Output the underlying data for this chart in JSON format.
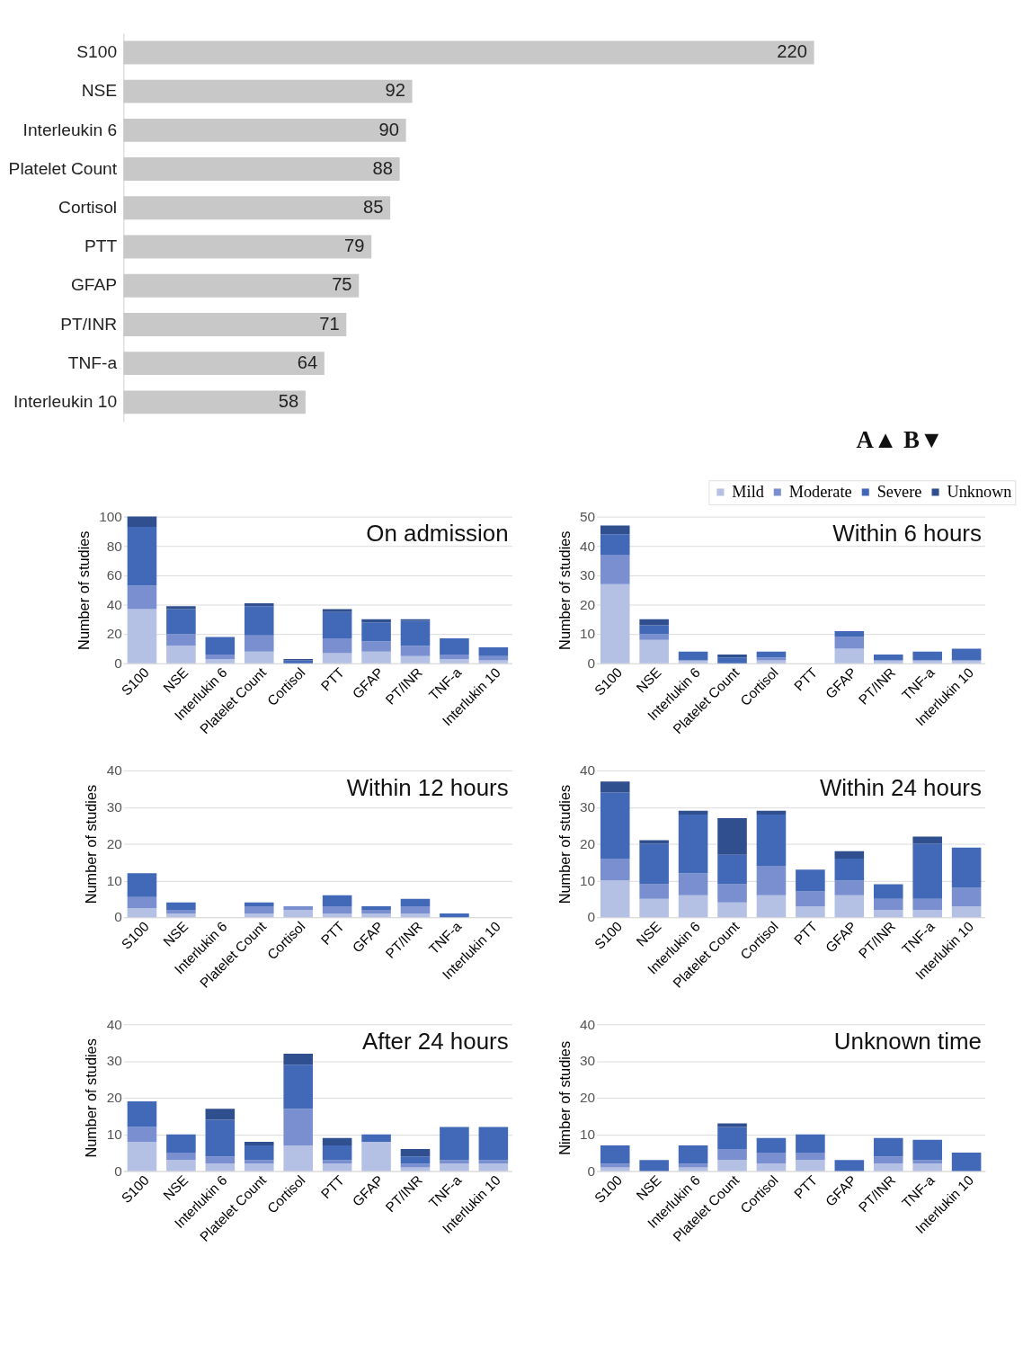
{
  "chart_data": [
    {
      "type": "bar",
      "orientation": "horizontal",
      "categories": [
        "S100",
        "NSE",
        "Interleukin 6",
        "Platelet Count",
        "Cortisol",
        "PTT",
        "GFAP",
        "PT/INR",
        "TNF-a",
        "Interleukin 10"
      ],
      "values": [
        220,
        92,
        90,
        88,
        85,
        79,
        75,
        71,
        64,
        58
      ],
      "color": "#c8c8c8",
      "data_labels": true,
      "annotations": [
        "A▲  B▼"
      ]
    },
    {
      "type": "bar",
      "stacked": true,
      "title": "On admission",
      "ylabel": "Number of studies",
      "ylim": [
        0,
        100
      ],
      "yticks": [
        0,
        20,
        40,
        60,
        80,
        100
      ],
      "grid": "y",
      "categories": [
        "S100",
        "NSE",
        "Interlukin 6",
        "Platelet Count",
        "Cortisol",
        "PTT",
        "GFAP",
        "PT/INR",
        "TNF-a",
        "Interlukin 10"
      ],
      "series": [
        {
          "color": "#b4c0e4",
          "values": [
            37,
            12,
            3,
            8,
            0,
            7,
            8,
            5,
            3,
            2
          ]
        },
        {
          "color": "#7a8fd0",
          "values": [
            16,
            8,
            3,
            11,
            0,
            10,
            7,
            7,
            3,
            3
          ]
        },
        {
          "color": "#4169b8",
          "values": [
            40,
            17,
            12,
            20,
            2,
            18,
            13,
            17,
            11,
            6
          ]
        },
        {
          "color": "#2f4f8f",
          "values": [
            7,
            2,
            0,
            2,
            1,
            2,
            2,
            1,
            0,
            0
          ]
        }
      ]
    },
    {
      "type": "bar",
      "stacked": true,
      "title": "Within 6 hours",
      "ylabel": "Number of studies",
      "ylim": [
        0,
        50
      ],
      "yticks": [
        0,
        10,
        20,
        30,
        40,
        50
      ],
      "grid": "y",
      "legend": "top right",
      "categories": [
        "S100",
        "NSE",
        "Interlukin 6",
        "Platelet Count",
        "Cortisol",
        "PTT",
        "GFAP",
        "PT/INR",
        "TNF-a",
        "Interlukin 10"
      ],
      "series": [
        {
          "name": "Mild",
          "color": "#b4c0e4",
          "values": [
            27,
            8,
            1,
            0,
            1,
            0,
            5,
            1,
            1,
            1
          ]
        },
        {
          "name": "Moderate",
          "color": "#7a8fd0",
          "values": [
            10,
            2,
            0,
            0,
            1,
            0,
            4,
            0,
            0,
            0
          ]
        },
        {
          "name": "Severe",
          "color": "#4169b8",
          "values": [
            7,
            3,
            3,
            2,
            2,
            0,
            2,
            2,
            3,
            4
          ]
        },
        {
          "name": "Unknown",
          "color": "#2f4f8f",
          "values": [
            3,
            2,
            0,
            1,
            0,
            0,
            0,
            0,
            0,
            0
          ]
        }
      ]
    },
    {
      "type": "bar",
      "stacked": true,
      "title": "Within 12 hours",
      "ylabel": "Number of studies",
      "ylim": [
        0,
        40
      ],
      "yticks": [
        0,
        10,
        20,
        30,
        40
      ],
      "grid": "y",
      "categories": [
        "S100",
        "NSE",
        "Interlukin 6",
        "Platelet Count",
        "Cortisol",
        "PTT",
        "GFAP",
        "PT/INR",
        "TNF-a",
        "Interlukin 10"
      ],
      "series": [
        {
          "color": "#b4c0e4",
          "values": [
            2.5,
            1,
            0,
            1,
            2,
            1,
            1,
            1,
            0,
            0
          ]
        },
        {
          "color": "#7a8fd0",
          "values": [
            3,
            1,
            0,
            2,
            1,
            2,
            1,
            2,
            0,
            0
          ]
        },
        {
          "color": "#4169b8",
          "values": [
            6.5,
            2,
            0,
            1,
            0,
            3,
            1,
            2,
            1,
            0
          ]
        },
        {
          "color": "#2f4f8f",
          "values": [
            0,
            0,
            0,
            0,
            0,
            0,
            0,
            0,
            0,
            0
          ]
        }
      ]
    },
    {
      "type": "bar",
      "stacked": true,
      "title": "Within 24 hours",
      "ylabel": "Number of studies",
      "ylim": [
        0,
        40
      ],
      "yticks": [
        0,
        10,
        20,
        30,
        40
      ],
      "grid": "y",
      "categories": [
        "S100",
        "NSE",
        "Interlukin 6",
        "Platelet Count",
        "Cortisol",
        "PTT",
        "GFAP",
        "PT/INR",
        "TNF-a",
        "Interlukin 10"
      ],
      "series": [
        {
          "color": "#b4c0e4",
          "values": [
            10,
            5,
            6,
            4,
            6,
            3,
            6,
            2,
            2,
            3
          ]
        },
        {
          "color": "#7a8fd0",
          "values": [
            6,
            4,
            6,
            5,
            8,
            4,
            4,
            3,
            3,
            5
          ]
        },
        {
          "color": "#4169b8",
          "values": [
            18,
            11,
            16,
            8,
            14,
            6,
            6,
            4,
            15,
            11
          ]
        },
        {
          "color": "#2f4f8f",
          "values": [
            3,
            1,
            1,
            10,
            1,
            0,
            2,
            0,
            2,
            0
          ]
        }
      ]
    },
    {
      "type": "bar",
      "stacked": true,
      "title": "After 24 hours",
      "ylabel": "Number of studies",
      "ylim": [
        0,
        40
      ],
      "yticks": [
        0,
        10,
        20,
        30,
        40
      ],
      "grid": "y",
      "categories": [
        "S100",
        "NSE",
        "Interlukin 6",
        "Platelet Count",
        "Cortisol",
        "PTT",
        "GFAP",
        "PT/INR",
        "TNF-a",
        "Interlukin 10"
      ],
      "series": [
        {
          "color": "#b4c0e4",
          "values": [
            8,
            3,
            2,
            2,
            7,
            2,
            8,
            1,
            2,
            2
          ]
        },
        {
          "color": "#7a8fd0",
          "values": [
            4,
            2,
            2,
            1,
            10,
            1,
            0,
            1,
            1,
            1
          ]
        },
        {
          "color": "#4169b8",
          "values": [
            7,
            5,
            10,
            4,
            12,
            4,
            2,
            2,
            9,
            9
          ]
        },
        {
          "color": "#2f4f8f",
          "values": [
            0,
            0,
            3,
            1,
            3,
            2,
            0,
            2,
            0,
            0
          ]
        }
      ]
    },
    {
      "type": "bar",
      "stacked": true,
      "title": "Unknown time",
      "ylabel": "Nimber of studies",
      "ylim": [
        0,
        40
      ],
      "yticks": [
        0,
        10,
        20,
        30,
        40
      ],
      "grid": "y",
      "categories": [
        "S100",
        "NSE",
        "Interlukin 6",
        "Platelet Count",
        "Cortisol",
        "PTT",
        "GFAP",
        "PT/INR",
        "TNF-a",
        "Interlukin 10"
      ],
      "series": [
        {
          "color": "#b4c0e4",
          "values": [
            1,
            0,
            1,
            3,
            2,
            3,
            0,
            2,
            2,
            0
          ]
        },
        {
          "color": "#7a8fd0",
          "values": [
            1,
            0,
            1,
            3,
            3,
            2,
            0,
            2,
            1,
            0
          ]
        },
        {
          "color": "#4169b8",
          "values": [
            5,
            3,
            5,
            6,
            4,
            5,
            3,
            5,
            5.5,
            5
          ]
        },
        {
          "color": "#2f4f8f",
          "values": [
            0,
            0,
            0,
            1,
            0,
            0,
            0,
            0,
            0,
            0
          ]
        }
      ]
    }
  ]
}
